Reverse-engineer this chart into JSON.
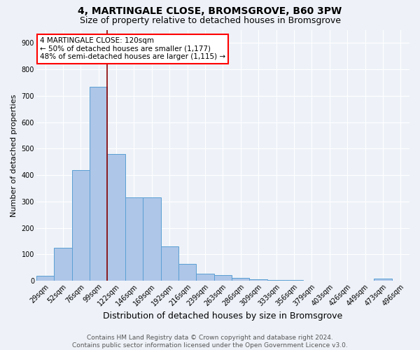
{
  "title1": "4, MARTINGALE CLOSE, BROMSGROVE, B60 3PW",
  "title2": "Size of property relative to detached houses in Bromsgrove",
  "xlabel": "Distribution of detached houses by size in Bromsgrove",
  "ylabel": "Number of detached properties",
  "bar_labels": [
    "29sqm",
    "52sqm",
    "76sqm",
    "99sqm",
    "122sqm",
    "146sqm",
    "169sqm",
    "192sqm",
    "216sqm",
    "239sqm",
    "263sqm",
    "286sqm",
    "309sqm",
    "333sqm",
    "356sqm",
    "379sqm",
    "403sqm",
    "426sqm",
    "449sqm",
    "473sqm",
    "496sqm"
  ],
  "bar_values": [
    20,
    125,
    420,
    735,
    480,
    315,
    315,
    130,
    65,
    27,
    22,
    10,
    5,
    3,
    3,
    0,
    0,
    0,
    0,
    8,
    0
  ],
  "bar_color": "#aec6e8",
  "bar_edge_color": "#5a9fd4",
  "red_line_index": 4,
  "annotation_line1": "4 MARTINGALE CLOSE: 120sqm",
  "annotation_line2": "← 50% of detached houses are smaller (1,177)",
  "annotation_line3": "48% of semi-detached houses are larger (1,115) →",
  "annotation_box_color": "white",
  "annotation_box_edge": "red",
  "ylim": [
    0,
    950
  ],
  "yticks": [
    0,
    100,
    200,
    300,
    400,
    500,
    600,
    700,
    800,
    900
  ],
  "bg_color": "#eef2f8",
  "grid_color": "white",
  "footer_line1": "Contains HM Land Registry data © Crown copyright and database right 2024.",
  "footer_line2": "Contains public sector information licensed under the Open Government Licence v3.0.",
  "title1_fontsize": 10,
  "title2_fontsize": 9,
  "xlabel_fontsize": 9,
  "ylabel_fontsize": 8,
  "tick_fontsize": 7,
  "annotation_fontsize": 7.5,
  "footer_fontsize": 6.5
}
